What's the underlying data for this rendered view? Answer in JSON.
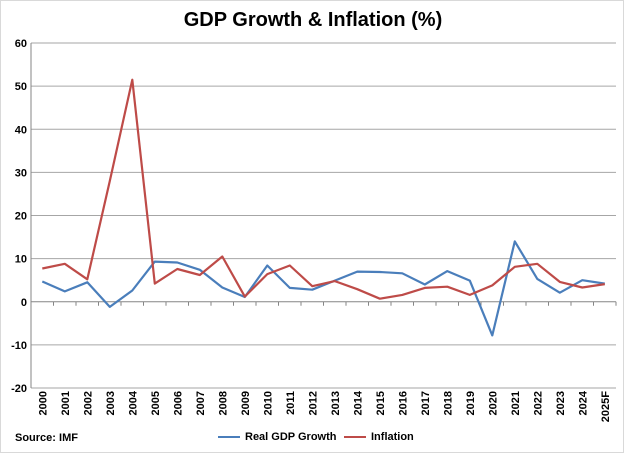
{
  "chart_data": {
    "type": "line",
    "title": "GDP Growth & Inflation (%)",
    "categories": [
      "2000",
      "2001",
      "2002",
      "2003",
      "2004",
      "2005",
      "2006",
      "2007",
      "2008",
      "2009",
      "2010",
      "2011",
      "2012",
      "2013",
      "2014",
      "2015",
      "2016",
      "2017",
      "2018",
      "2019",
      "2020",
      "2021",
      "2022",
      "2023",
      "2024",
      "2025F"
    ],
    "series": [
      {
        "name": "Real GDP Growth",
        "color": "#4a7ebb",
        "values": [
          4.7,
          2.4,
          4.5,
          -1.2,
          2.6,
          9.3,
          9.1,
          7.4,
          3.3,
          1.1,
          8.4,
          3.2,
          2.8,
          4.9,
          7.0,
          6.9,
          6.6,
          4.0,
          7.1,
          4.9,
          -7.8,
          14.0,
          5.3,
          2.1,
          5.0,
          4.2
        ]
      },
      {
        "name": "Inflation",
        "color": "#be4b48",
        "values": [
          7.7,
          8.8,
          5.2,
          28.0,
          51.5,
          4.2,
          7.6,
          6.2,
          10.5,
          1.2,
          6.4,
          8.4,
          3.6,
          4.8,
          2.9,
          0.7,
          1.6,
          3.2,
          3.5,
          1.6,
          3.8,
          8.1,
          8.8,
          4.6,
          3.3,
          4.1
        ]
      }
    ],
    "yticks": [
      60,
      50,
      40,
      30,
      20,
      10,
      0,
      -10,
      -20
    ],
    "ylim": [
      -20,
      60
    ],
    "grid": true,
    "legend": "bottom",
    "source": "Source: IMF"
  }
}
